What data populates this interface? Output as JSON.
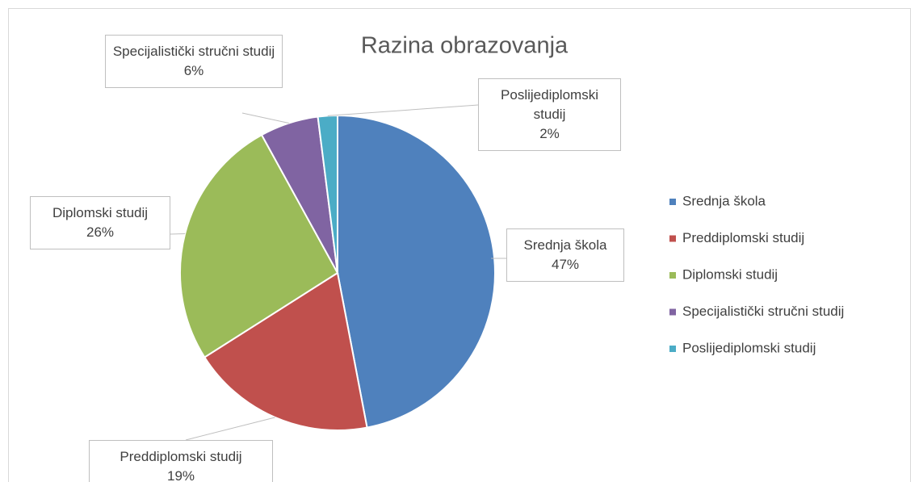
{
  "chart_data": {
    "type": "pie",
    "title": "Razina obrazovanja",
    "categories": [
      "Srednja škola",
      "Preddiplomski studij",
      "Diplomski studij",
      "Specijalistički stručni studij",
      "Poslijediplomski studij"
    ],
    "values": [
      47,
      19,
      26,
      6,
      2
    ],
    "value_labels": [
      "47%",
      "19%",
      "26%",
      "6%",
      "2%"
    ],
    "colors": [
      "#4f81bd",
      "#c0504d",
      "#9bbb59",
      "#8064a2",
      "#4bacc6"
    ],
    "legend": "right"
  }
}
